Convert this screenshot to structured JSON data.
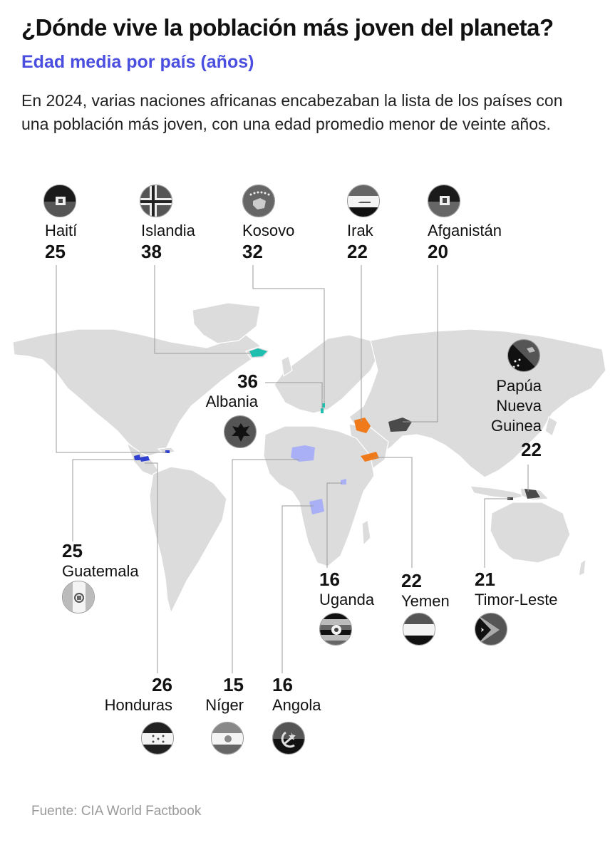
{
  "header": {
    "title": "¿Dónde vive la población más joven del planeta?",
    "subtitle": "Edad media por país (años)",
    "description": "En 2024, varias naciones africanas encabezaban la lista de los países con una población más joven, con una edad promedio menor de veinte años."
  },
  "colors": {
    "map_land": "#dcdcdc",
    "map_border": "#ffffff",
    "subtitle": "#4b4fe0",
    "highlight_teal": "#1fbfb0",
    "highlight_orange": "#f07a1a",
    "highlight_lavender": "#a9b0f5",
    "highlight_blue": "#2f3fd0",
    "highlight_dark": "#4a4a4a",
    "leader_line": "#9a9a9a"
  },
  "countries": {
    "haiti": {
      "name": "Haití",
      "age": "25",
      "flag": "haiti-flag-icon"
    },
    "islandia": {
      "name": "Islandia",
      "age": "38",
      "flag": "iceland-flag-icon"
    },
    "kosovo": {
      "name": "Kosovo",
      "age": "32",
      "flag": "kosovo-flag-icon"
    },
    "irak": {
      "name": "Irak",
      "age": "22",
      "flag": "iraq-flag-icon"
    },
    "afganistan": {
      "name": "Afganistán",
      "age": "20",
      "flag": "afghanistan-flag-icon"
    },
    "albania": {
      "name": "Albania",
      "age": "36",
      "flag": "albania-flag-icon"
    },
    "png": {
      "name_l1": "Papúa",
      "name_l2": "Nueva",
      "name_l3": "Guinea",
      "age": "22",
      "flag": "papua-new-guinea-flag-icon"
    },
    "guatemala": {
      "name": "Guatemala",
      "age": "25",
      "flag": "guatemala-flag-icon"
    },
    "uganda": {
      "name": "Uganda",
      "age": "16",
      "flag": "uganda-flag-icon"
    },
    "yemen": {
      "name": "Yemen",
      "age": "22",
      "flag": "yemen-flag-icon"
    },
    "timor": {
      "name": "Timor-Leste",
      "age": "21",
      "flag": "timor-leste-flag-icon"
    },
    "honduras": {
      "name": "Honduras",
      "age": "26",
      "flag": "honduras-flag-icon"
    },
    "niger": {
      "name": "Níger",
      "age": "15",
      "flag": "niger-flag-icon"
    },
    "angola": {
      "name": "Angola",
      "age": "16",
      "flag": "angola-flag-icon"
    }
  },
  "footer": {
    "source": "Fuente: CIA World Factbook"
  }
}
